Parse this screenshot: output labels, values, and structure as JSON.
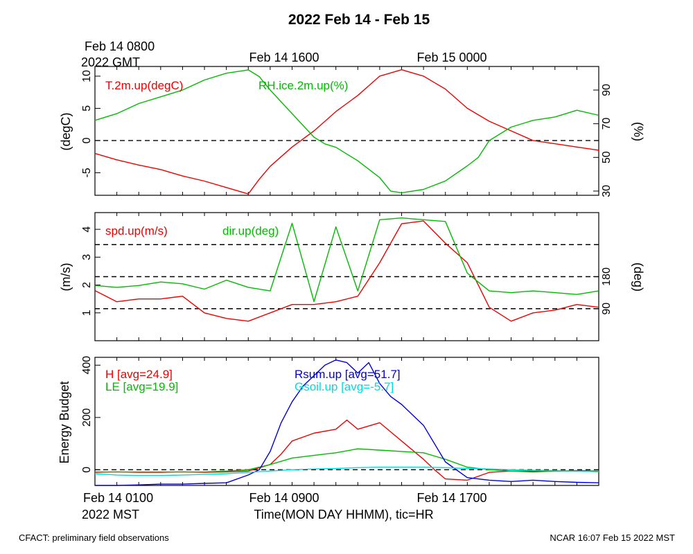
{
  "title": "2022 Feb 14 - Feb 15",
  "colors": {
    "red": "#ee0000",
    "green": "#00bb00",
    "blue": "#0000dd",
    "cyan": "#00dddd",
    "black": "#000000"
  },
  "top_axis": {
    "labels": [
      {
        "line1": "Feb 14 0800",
        "line2": "2022 GMT"
      },
      {
        "line1": "Feb 14 1600",
        "line2": ""
      },
      {
        "line1": "Feb 15 0000",
        "line2": ""
      }
    ]
  },
  "bottom_axis": {
    "labels": [
      {
        "line1": "Feb 14 0100",
        "line2": "2022 MST"
      },
      {
        "line1": "Feb 14 0900",
        "line2": ""
      },
      {
        "line1": "Feb 14 1700",
        "line2": ""
      }
    ],
    "xlabel": "Time(MON DAY HHMM), tic=HR"
  },
  "footer": {
    "left": "CFACT: preliminary field observations",
    "right": "NCAR 16:07 Feb 15 2022 MST"
  },
  "chart_data": [
    {
      "type": "line",
      "x_hours_mst": [
        1,
        24
      ],
      "ylabel_left": "(degC)",
      "ylabel_right": "(%)",
      "ylim_left": [
        -8.5,
        11.5
      ],
      "ylim_right": [
        27.5,
        104
      ],
      "yticks_left": [
        "-5",
        "0",
        "5",
        "10"
      ],
      "yticks_right": [
        "30",
        "50",
        "70",
        "90"
      ],
      "zero_line_left": 0,
      "series": [
        {
          "name": "T.2m.up(degC)",
          "color": "red",
          "axis": "left",
          "x": [
            1,
            2,
            3,
            4,
            5,
            6,
            7,
            8,
            8.5,
            9,
            10,
            11,
            11.5,
            12,
            13,
            13.5,
            14,
            15,
            16,
            16.5,
            17,
            18,
            19,
            20,
            21,
            22,
            23,
            24
          ],
          "y": [
            -2.0,
            -3.0,
            -3.8,
            -4.5,
            -5.5,
            -6.3,
            -7.3,
            -8.3,
            -6.0,
            -4.0,
            -1.0,
            1.5,
            3.0,
            4.5,
            7.0,
            8.5,
            10.0,
            11.0,
            10.0,
            9.0,
            8.0,
            5.0,
            3.0,
            1.5,
            0.0,
            -0.5,
            -1.0,
            -1.5
          ]
        },
        {
          "name": "RH.ice.2m.up(%)",
          "color": "green",
          "axis": "right",
          "x": [
            1,
            2,
            3,
            4,
            5,
            6,
            7,
            8,
            8.5,
            9,
            10,
            11,
            11.5,
            12,
            13,
            14,
            14.5,
            15,
            16,
            17,
            18,
            18.5,
            19,
            20,
            21,
            22,
            23,
            24
          ],
          "y": [
            72,
            76,
            82,
            86,
            90,
            96,
            100,
            102,
            98,
            90,
            76,
            62,
            58,
            56,
            48,
            38,
            30,
            29,
            31,
            36,
            45,
            50,
            60,
            68,
            72,
            74,
            78,
            75
          ]
        }
      ]
    },
    {
      "type": "line",
      "x_hours_mst": [
        1,
        24
      ],
      "ylabel_left": "(m/s)",
      "ylabel_right": "(deg)",
      "ylim_left": [
        0,
        4.6
      ],
      "ylim_right": [
        0,
        360
      ],
      "yticks_left": [
        "1",
        "2",
        "3",
        "4"
      ],
      "yticks_right": [
        "90",
        "180"
      ],
      "reference_lines_left": [
        1.15,
        2.3,
        3.45
      ],
      "series": [
        {
          "name": "spd.up(m/s)",
          "color": "red",
          "axis": "left",
          "x": [
            1,
            2,
            3,
            4,
            5,
            6,
            7,
            8,
            9,
            10,
            11,
            12,
            13,
            14,
            15,
            16,
            17,
            18,
            19,
            20,
            21,
            22,
            23,
            24
          ],
          "y": [
            1.8,
            1.4,
            1.5,
            1.5,
            1.6,
            1.0,
            0.8,
            0.7,
            1.0,
            1.3,
            1.3,
            1.4,
            1.6,
            2.8,
            4.2,
            4.3,
            3.5,
            2.8,
            1.2,
            0.7,
            1.0,
            1.1,
            1.3,
            1.2
          ]
        },
        {
          "name": "dir.up(deg)",
          "color": "green",
          "axis": "right",
          "x": [
            1,
            2,
            3,
            4,
            5,
            6,
            7,
            8,
            9,
            10,
            11,
            12,
            13,
            14,
            15,
            16,
            17,
            18,
            19,
            20,
            21,
            22,
            23,
            24
          ],
          "y": [
            155,
            150,
            155,
            165,
            160,
            145,
            170,
            150,
            140,
            330,
            110,
            320,
            140,
            340,
            345,
            340,
            335,
            190,
            140,
            135,
            140,
            135,
            130,
            140
          ]
        }
      ]
    },
    {
      "type": "line",
      "x_hours_mst": [
        1,
        24
      ],
      "ylabel_left": "Energy Budget",
      "ylim_left": [
        -60,
        430
      ],
      "yticks_left": [
        "0",
        "200",
        "400"
      ],
      "zero_line_left": 0,
      "series": [
        {
          "name": "H",
          "legend": "H [avg=24.9]",
          "color": "red",
          "x": [
            1,
            2,
            3,
            4,
            5,
            6,
            7,
            8,
            9,
            9.5,
            10,
            11,
            12,
            12.5,
            13,
            14,
            15,
            16,
            16.5,
            17,
            18,
            19,
            20,
            21,
            22,
            23,
            24
          ],
          "y": [
            -10,
            -8,
            -10,
            -10,
            -8,
            -10,
            -8,
            -5,
            20,
            60,
            110,
            140,
            155,
            190,
            155,
            180,
            110,
            40,
            0,
            -35,
            -40,
            -10,
            -5,
            -8,
            -5,
            -3,
            -5
          ]
        },
        {
          "name": "LE",
          "legend": "LE [avg=19.9]",
          "color": "green",
          "x": [
            1,
            2,
            3,
            4,
            5,
            6,
            7,
            8,
            9,
            10,
            11,
            12,
            13,
            14,
            15,
            16,
            17,
            18,
            19,
            20,
            21,
            22,
            23,
            24
          ],
          "y": [
            -8,
            -8,
            -8,
            -8,
            -8,
            -8,
            -5,
            0,
            20,
            45,
            55,
            65,
            80,
            75,
            70,
            65,
            40,
            10,
            0,
            -5,
            -5,
            -5,
            -5,
            -5
          ]
        },
        {
          "name": "Rsum.up",
          "legend": "Rsum.up [avg=51.7]",
          "color": "blue",
          "x": [
            1,
            2,
            3,
            4,
            5,
            6,
            7,
            8,
            8.5,
            9,
            9.5,
            10,
            10.5,
            11,
            11.5,
            12,
            12.5,
            13,
            13.5,
            14,
            14.5,
            15,
            16,
            17,
            18,
            19,
            20,
            21,
            22,
            23,
            24
          ],
          "y": [
            -60,
            -60,
            -58,
            -55,
            -55,
            -52,
            -50,
            -20,
            0,
            70,
            180,
            260,
            320,
            360,
            400,
            420,
            410,
            370,
            410,
            330,
            280,
            250,
            170,
            30,
            -30,
            -40,
            -45,
            -40,
            -45,
            -48,
            -50
          ]
        },
        {
          "name": "Gsoil.up",
          "legend": "Gsoil.up [avg=-5.7]",
          "color": "cyan",
          "x": [
            1,
            2,
            3,
            4,
            5,
            6,
            7,
            8,
            9,
            10,
            11,
            12,
            13,
            14,
            15,
            16,
            17,
            18,
            19,
            20,
            21,
            22,
            23,
            24
          ],
          "y": [
            -15,
            -20,
            -22,
            -22,
            -20,
            -18,
            -15,
            -10,
            -5,
            0,
            3,
            5,
            8,
            10,
            10,
            10,
            8,
            5,
            3,
            0,
            -2,
            -3,
            -5,
            -8
          ]
        }
      ]
    }
  ]
}
